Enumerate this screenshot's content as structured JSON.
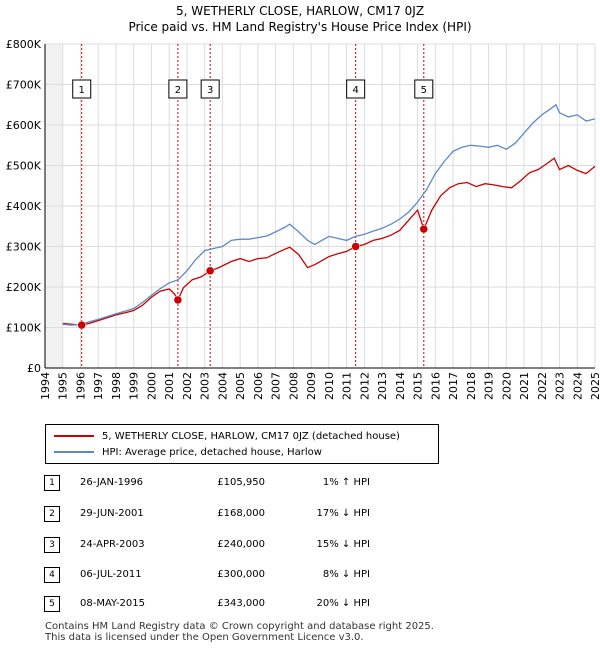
{
  "title_line1": "5, WETHERLY CLOSE, HARLOW, CM17 0JZ",
  "title_line2": "Price paid vs. HM Land Registry's House Price Index (HPI)",
  "chart_data": {
    "type": "line",
    "x_range": [
      1994,
      2025
    ],
    "ylim": [
      0,
      800000
    ],
    "y_ticks": [
      0,
      100000,
      200000,
      300000,
      400000,
      500000,
      600000,
      700000,
      800000
    ],
    "y_tick_labels": [
      "£0",
      "£100K",
      "£200K",
      "£300K",
      "£400K",
      "£500K",
      "£600K",
      "£700K",
      "£800K"
    ],
    "x_ticks": [
      "1994",
      "1995",
      "1996",
      "1997",
      "1998",
      "1999",
      "2000",
      "2001",
      "2002",
      "2003",
      "2004",
      "2005",
      "2006",
      "2007",
      "2008",
      "2009",
      "2010",
      "2011",
      "2012",
      "2013",
      "2014",
      "2015",
      "2016",
      "2017",
      "2018",
      "2019",
      "2020",
      "2021",
      "2022",
      "2023",
      "2024",
      "2025"
    ],
    "grid": true,
    "series": [
      {
        "name": "5, WETHERLY CLOSE, HARLOW, CM17 0JZ (detached house)",
        "color": "#cc0000",
        "x": [
          1995.0,
          1995.5,
          1996.07,
          1996.5,
          1997.0,
          1997.5,
          1998.0,
          1998.5,
          1999.0,
          1999.5,
          2000.0,
          2000.5,
          2001.0,
          2001.3,
          2001.49,
          2001.8,
          2002.3,
          2002.8,
          2003.31,
          2003.8,
          2004.5,
          2005.0,
          2005.5,
          2006.0,
          2006.5,
          2007.0,
          2007.5,
          2007.8,
          2008.3,
          2008.8,
          2009.2,
          2009.6,
          2010.0,
          2010.5,
          2011.0,
          2011.51,
          2012.0,
          2012.5,
          2013.0,
          2013.5,
          2014.0,
          2014.5,
          2015.0,
          2015.35,
          2015.8,
          2016.3,
          2016.8,
          2017.3,
          2017.8,
          2018.3,
          2018.8,
          2019.3,
          2019.8,
          2020.3,
          2020.8,
          2021.3,
          2021.8,
          2022.3,
          2022.7,
          2023.0,
          2023.5,
          2024.0,
          2024.5,
          2025.0
        ],
        "y": [
          110000,
          108000,
          105950,
          110000,
          117000,
          124000,
          131000,
          136000,
          142000,
          155000,
          175000,
          190000,
          195000,
          183000,
          168000,
          198000,
          218000,
          225000,
          240000,
          248000,
          263000,
          270000,
          263000,
          270000,
          272000,
          283000,
          293000,
          298000,
          280000,
          248000,
          255000,
          265000,
          275000,
          282000,
          288000,
          300000,
          305000,
          315000,
          320000,
          328000,
          340000,
          365000,
          390000,
          343000,
          390000,
          425000,
          445000,
          455000,
          458000,
          448000,
          455000,
          452000,
          448000,
          445000,
          462000,
          482000,
          490000,
          505000,
          518000,
          490000,
          500000,
          488000,
          480000,
          498000
        ]
      },
      {
        "name": "HPI: Average price, detached house, Harlow",
        "color": "#5b8ac6",
        "x": [
          1995.0,
          1995.5,
          1996.0,
          1996.5,
          1997.0,
          1997.5,
          1998.0,
          1998.5,
          1999.0,
          1999.5,
          2000.0,
          2000.5,
          2001.0,
          2001.5,
          2002.0,
          2002.5,
          2003.0,
          2003.5,
          2004.0,
          2004.5,
          2005.0,
          2005.5,
          2006.0,
          2006.5,
          2007.0,
          2007.5,
          2007.8,
          2008.3,
          2008.8,
          2009.2,
          2009.6,
          2010.0,
          2010.5,
          2011.0,
          2011.5,
          2012.0,
          2012.5,
          2013.0,
          2013.5,
          2014.0,
          2014.5,
          2015.0,
          2015.5,
          2016.0,
          2016.5,
          2017.0,
          2017.5,
          2018.0,
          2018.5,
          2019.0,
          2019.5,
          2020.0,
          2020.5,
          2021.0,
          2021.5,
          2022.0,
          2022.5,
          2022.8,
          2023.0,
          2023.5,
          2024.0,
          2024.5,
          2025.0
        ],
        "y": [
          108000,
          106000,
          108000,
          114000,
          120000,
          127000,
          134000,
          140000,
          147000,
          162000,
          180000,
          196000,
          210000,
          218000,
          240000,
          268000,
          290000,
          295000,
          300000,
          315000,
          318000,
          318000,
          322000,
          326000,
          336000,
          347000,
          355000,
          336000,
          315000,
          305000,
          315000,
          325000,
          320000,
          315000,
          325000,
          330000,
          338000,
          345000,
          355000,
          368000,
          385000,
          410000,
          440000,
          480000,
          510000,
          535000,
          545000,
          550000,
          548000,
          545000,
          550000,
          540000,
          555000,
          580000,
          605000,
          625000,
          640000,
          650000,
          630000,
          620000,
          625000,
          610000,
          615000
        ]
      }
    ],
    "sales": [
      {
        "n": "1",
        "x": 1996.07,
        "y": 105950
      },
      {
        "n": "2",
        "x": 2001.49,
        "y": 168000
      },
      {
        "n": "3",
        "x": 2003.31,
        "y": 240000
      },
      {
        "n": "4",
        "x": 2011.51,
        "y": 300000
      },
      {
        "n": "5",
        "x": 2015.35,
        "y": 343000
      }
    ]
  },
  "legend": {
    "items": [
      {
        "label": "5, WETHERLY CLOSE, HARLOW, CM17 0JZ (detached house)",
        "color": "#cc0000"
      },
      {
        "label": "HPI: Average price, detached house, Harlow",
        "color": "#5b8ac6"
      }
    ]
  },
  "sales_table": [
    {
      "num": "1",
      "date": "26-JAN-1996",
      "price": "£105,950",
      "hpi": "1% ↑ HPI"
    },
    {
      "num": "2",
      "date": "29-JUN-2001",
      "price": "£168,000",
      "hpi": "17% ↓ HPI"
    },
    {
      "num": "3",
      "date": "24-APR-2003",
      "price": "£240,000",
      "hpi": "15% ↓ HPI"
    },
    {
      "num": "4",
      "date": "06-JUL-2011",
      "price": "£300,000",
      "hpi": "8% ↓ HPI"
    },
    {
      "num": "5",
      "date": "08-MAY-2015",
      "price": "£343,000",
      "hpi": "20% ↓ HPI"
    }
  ],
  "footer": {
    "line1": "Contains HM Land Registry data © Crown copyright and database right 2025.",
    "line2": "This data is licensed under the Open Government Licence v3.0."
  }
}
